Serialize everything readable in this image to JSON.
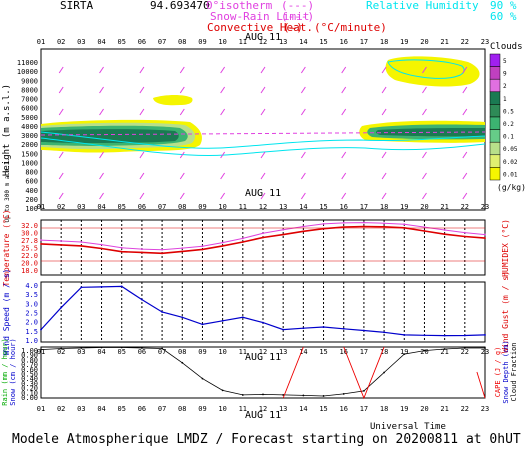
{
  "header": {
    "site": "SIRTA",
    "coords": "94.693470",
    "legend_isotherm": "0°isotherm",
    "legend_snow_rain": "Snow-Rain Limit",
    "legend_convective": "Convective Heat.",
    "legend_unit": "(°C/minute)",
    "rh_label": "Relative Humidity",
    "rh_90": "90 %",
    "rh_60": "60 %",
    "date": "AUG 11"
  },
  "hours": [
    "01",
    "02",
    "03",
    "04",
    "05",
    "06",
    "07",
    "08",
    "09",
    "10",
    "11",
    "12",
    "13",
    "14",
    "15",
    "16",
    "17",
    "18",
    "19",
    "20",
    "21",
    "22",
    "23"
  ],
  "colors": {
    "cloud_dark": "#1a7a52",
    "cloud_mid": "#3cb371",
    "cloud_light": "#b8e08a",
    "cloud_yellow": "#f5f500",
    "rh_line": "#00e5ee",
    "wind_barb": "#e040e0",
    "temp": "#dd0000",
    "humidex": "#dd44dd",
    "wind": "#0000cc",
    "cloud_fraction": "#000000",
    "cape": "#ee0000"
  },
  "panels": {
    "cloud": {
      "ylabel": "Height (m a.s.l.)",
      "ylabel2": "Up to 300 m a.s.l.",
      "yticks": [
        "11000",
        "10000",
        "9000",
        "8000",
        "7000",
        "6000",
        "5000",
        "4000",
        "3000",
        "2000",
        "1500",
        "1000",
        "800",
        "600",
        "400",
        "200",
        "100"
      ],
      "colorbar_title": "Clouds",
      "colorbar_labels": [
        "5",
        "9",
        "2",
        "1",
        "0.5",
        "0.2",
        "0.1",
        "0.05",
        "0.02",
        "0.01"
      ],
      "colorbar_unit": "(g/kg)"
    },
    "temperature": {
      "ylabel": "Temperature (°C)",
      "ylabel2": "HUMIDEX (°C)",
      "yticks": [
        "32.0",
        "30.0",
        "27.8",
        "25.5",
        "22.0",
        "20.0",
        "18.0"
      ]
    },
    "wind": {
      "ylabel": "Wind Speed (m / s)",
      "ylabel2": "Wind Gust (m / s)",
      "yticks": [
        "4.0",
        "3.5",
        "3.0",
        "2.5",
        "2.0",
        "1.5",
        "1.0"
      ]
    },
    "precip": {
      "ylabel": "Rain (mm / hour)",
      "ylabel_b": "Snow (cm / hour)",
      "ylabel2": "CAPE (J / g)",
      "ylabel2_b": "Snow Depth (cm)",
      "ylabel2_c": "Cloud Fraction",
      "yticks": [
        "1.00",
        "0.90",
        "0.80",
        "0.70",
        "0.60",
        "0.50",
        "0.40",
        "0.30",
        "0.20",
        "0.10",
        "0.00"
      ],
      "xlabel": "Universal Time"
    }
  },
  "chart_data": [
    {
      "type": "line",
      "title": "Temperature",
      "x": [
        "01",
        "02",
        "03",
        "04",
        "05",
        "06",
        "07",
        "08",
        "09",
        "10",
        "11",
        "12",
        "13",
        "14",
        "15",
        "16",
        "17",
        "18",
        "19",
        "20",
        "21",
        "22",
        "23"
      ],
      "ylim": [
        16,
        33
      ],
      "series": [
        {
          "name": "Temperature",
          "values": [
            25.6,
            25.3,
            25.0,
            24.2,
            23.2,
            23.0,
            22.7,
            23.3,
            23.9,
            25.0,
            26.2,
            27.6,
            28.5,
            29.5,
            30.3,
            30.8,
            31.0,
            30.9,
            30.6,
            29.6,
            28.6,
            27.9,
            27.4
          ]
        },
        {
          "name": "HUMIDEX",
          "values": [
            26.8,
            26.5,
            26.2,
            25.4,
            24.4,
            24.0,
            23.8,
            24.3,
            24.9,
            26.0,
            27.3,
            28.9,
            30.0,
            31.0,
            31.8,
            32.1,
            32.2,
            32.0,
            31.7,
            30.8,
            29.9,
            29.1,
            28.5
          ]
        }
      ]
    },
    {
      "type": "line",
      "title": "Wind Speed",
      "x": [
        "01",
        "02",
        "03",
        "04",
        "05",
        "06",
        "07",
        "08",
        "09",
        "10",
        "11",
        "12",
        "13",
        "14",
        "15",
        "16",
        "17",
        "18",
        "19",
        "20",
        "21",
        "22",
        "23"
      ],
      "ylim": [
        0.6,
        4.0
      ],
      "series": [
        {
          "name": "Wind Speed",
          "values": [
            1.3,
            2.55,
            3.7,
            3.72,
            3.75,
            3.0,
            2.3,
            2.0,
            1.6,
            1.8,
            2.0,
            1.7,
            1.3,
            1.38,
            1.45,
            1.35,
            1.25,
            1.15,
            1.0,
            0.98,
            0.96,
            0.97,
            1.0
          ]
        }
      ]
    },
    {
      "type": "line",
      "title": "Cloud Fraction",
      "x": [
        "01",
        "02",
        "03",
        "04",
        "05",
        "06",
        "07",
        "08",
        "09",
        "10",
        "11",
        "12",
        "13",
        "14",
        "15",
        "16",
        "17",
        "18",
        "19",
        "20",
        "21",
        "22",
        "23"
      ],
      "ylim": [
        0,
        1
      ],
      "series": [
        {
          "name": "Cloud Fraction",
          "values": [
            0.95,
            0.97,
            0.98,
            0.99,
            0.99,
            0.98,
            0.97,
            0.69,
            0.38,
            0.15,
            0.06,
            0.07,
            0.06,
            0.05,
            0.04,
            0.08,
            0.14,
            0.5,
            0.86,
            0.93,
            0.96,
            0.98,
            0.98
          ]
        }
      ]
    }
  ],
  "footer": "Modele Atmospherique LMDZ / Forecast starting on 20200811 at 0hUT"
}
